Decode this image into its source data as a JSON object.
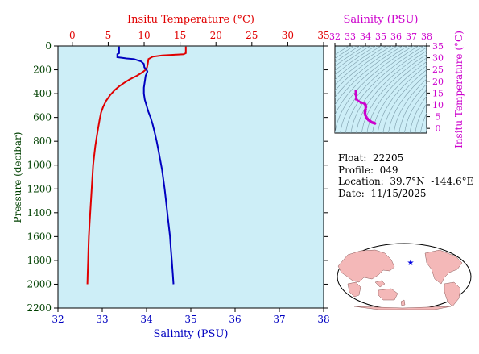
{
  "chart_data": [
    {
      "type": "line",
      "title": "",
      "top_axis": {
        "label": "Insitu Temperature (°C)",
        "range": [
          -2,
          35
        ],
        "ticks": [
          0,
          5,
          10,
          15,
          20,
          25,
          30,
          35
        ],
        "color": "#e00000"
      },
      "bottom_axis": {
        "label": "Salinity (PSU)",
        "range": [
          32,
          38
        ],
        "ticks": [
          32,
          33,
          34,
          35,
          36,
          37,
          38
        ],
        "color": "#0000c0"
      },
      "left_axis": {
        "label": "Pressure (decibar)",
        "range": [
          0,
          2200
        ],
        "inverted": true,
        "ticks": [
          0,
          200,
          400,
          600,
          800,
          1000,
          1200,
          1400,
          1600,
          1800,
          2000,
          2200
        ],
        "color": "#004000"
      },
      "background": "#cdeef7",
      "series": [
        {
          "axis": "temperature",
          "color": "#e00000",
          "points": [
            [
              15.8,
              5
            ],
            [
              15.8,
              60
            ],
            [
              15.5,
              70
            ],
            [
              12.5,
              80
            ],
            [
              11.2,
              90
            ],
            [
              10.6,
              110
            ],
            [
              10.5,
              150
            ],
            [
              10.4,
              180
            ],
            [
              10.2,
              200
            ],
            [
              9.8,
              220
            ],
            [
              9.0,
              250
            ],
            [
              8.0,
              280
            ],
            [
              7.2,
              310
            ],
            [
              6.5,
              340
            ],
            [
              5.9,
              370
            ],
            [
              5.3,
              410
            ],
            [
              4.7,
              460
            ],
            [
              4.3,
              510
            ],
            [
              4.0,
              560
            ],
            [
              3.8,
              620
            ],
            [
              3.6,
              690
            ],
            [
              3.4,
              760
            ],
            [
              3.2,
              840
            ],
            [
              3.05,
              920
            ],
            [
              2.9,
              1000
            ],
            [
              2.8,
              1100
            ],
            [
              2.7,
              1200
            ],
            [
              2.6,
              1300
            ],
            [
              2.5,
              1400
            ],
            [
              2.4,
              1500
            ],
            [
              2.3,
              1600
            ],
            [
              2.25,
              1700
            ],
            [
              2.2,
              1800
            ],
            [
              2.15,
              1900
            ],
            [
              2.1,
              2000
            ]
          ]
        },
        {
          "axis": "salinity",
          "color": "#0000c0",
          "points": [
            [
              33.38,
              5
            ],
            [
              33.38,
              60
            ],
            [
              33.34,
              70
            ],
            [
              33.34,
              95
            ],
            [
              33.45,
              100
            ],
            [
              33.55,
              105
            ],
            [
              33.72,
              110
            ],
            [
              33.88,
              130
            ],
            [
              33.94,
              150
            ],
            [
              33.95,
              180
            ],
            [
              34.0,
              200
            ],
            [
              34.02,
              215
            ],
            [
              33.98,
              250
            ],
            [
              33.96,
              300
            ],
            [
              33.94,
              350
            ],
            [
              33.94,
              400
            ],
            [
              33.96,
              450
            ],
            [
              34.0,
              500
            ],
            [
              34.04,
              550
            ],
            [
              34.09,
              600
            ],
            [
              34.14,
              660
            ],
            [
              34.18,
              720
            ],
            [
              34.23,
              800
            ],
            [
              34.27,
              880
            ],
            [
              34.31,
              960
            ],
            [
              34.35,
              1040
            ],
            [
              34.38,
              1120
            ],
            [
              34.41,
              1200
            ],
            [
              34.44,
              1300
            ],
            [
              34.47,
              1400
            ],
            [
              34.5,
              1500
            ],
            [
              34.53,
              1600
            ],
            [
              34.55,
              1700
            ],
            [
              34.57,
              1800
            ],
            [
              34.59,
              1900
            ],
            [
              34.61,
              2000
            ]
          ]
        }
      ]
    },
    {
      "type": "scatter",
      "title": "",
      "top_axis": {
        "label": "Salinity (PSU)",
        "range": [
          32,
          38
        ],
        "ticks": [
          32,
          33,
          34,
          35,
          36,
          37,
          38
        ],
        "color": "#cc00cc"
      },
      "right_axis": {
        "label": "Insitu Temperature (°C)",
        "range": [
          -2,
          35
        ],
        "ticks": [
          0,
          5,
          10,
          15,
          20,
          25,
          30,
          35
        ],
        "color": "#cc00cc"
      },
      "background": "#cdeef7",
      "contours": "density isopycnals",
      "series": [
        {
          "color": "#cc00cc",
          "points": [
            [
              33.38,
              15.8
            ],
            [
              33.36,
              14.5
            ],
            [
              33.4,
              12.4
            ],
            [
              33.7,
              11.0
            ],
            [
              33.95,
              10.4
            ],
            [
              34.0,
              10.0
            ],
            [
              34.02,
              9.0
            ],
            [
              34.0,
              8.0
            ],
            [
              33.98,
              7.2
            ],
            [
              33.97,
              6.5
            ],
            [
              34.0,
              5.6
            ],
            [
              34.05,
              4.8
            ],
            [
              34.12,
              4.1
            ],
            [
              34.2,
              3.6
            ],
            [
              34.28,
              3.2
            ],
            [
              34.36,
              2.8
            ],
            [
              34.45,
              2.5
            ],
            [
              34.54,
              2.3
            ],
            [
              34.61,
              2.1
            ]
          ]
        }
      ]
    }
  ],
  "info": {
    "float": "Float:  22205",
    "profile": "Profile:  049",
    "location": "Location:  39.7°N  -144.6°E",
    "date": "Date:  11/15/2025"
  },
  "map": {
    "projection": "mollweide world map",
    "land_color": "#f4b8b8",
    "ocean_color": "#ffffff",
    "marker": {
      "lat": 39.7,
      "lon": -144.6,
      "symbol": "★",
      "color": "#0000e0"
    }
  }
}
